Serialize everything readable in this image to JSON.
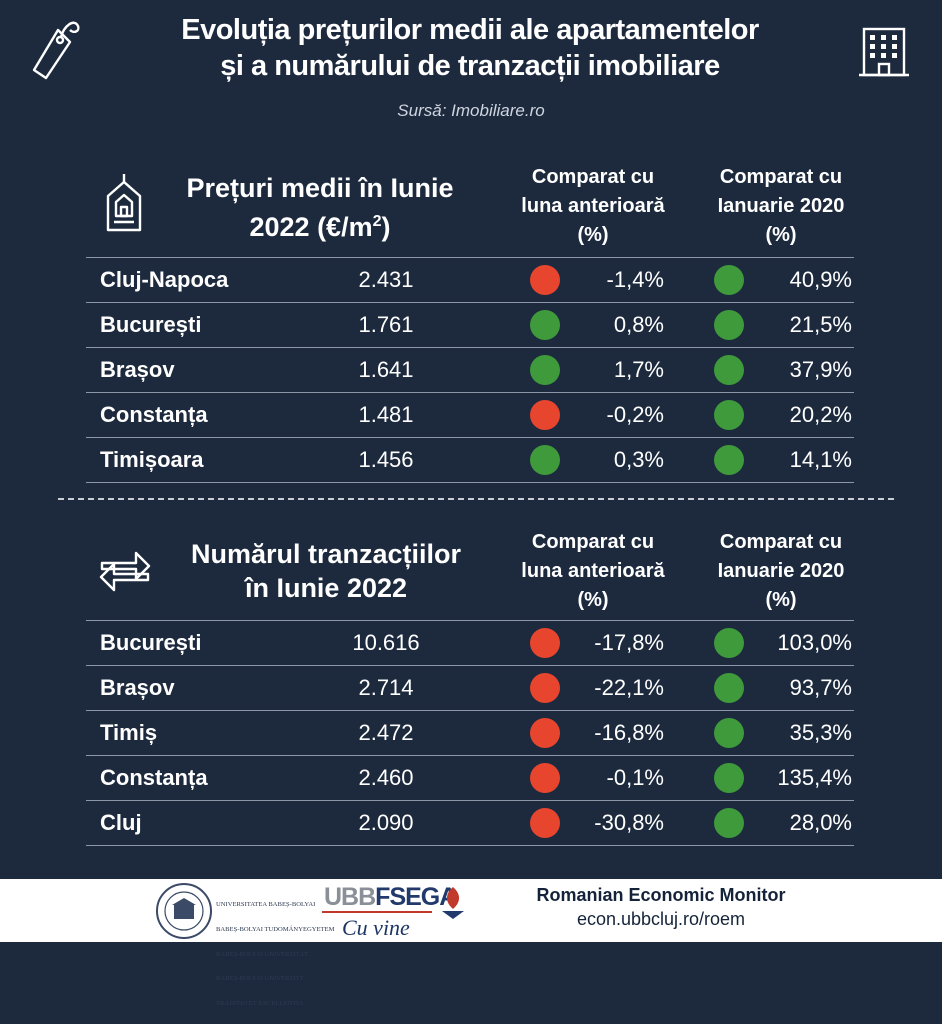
{
  "header": {
    "title_line1": "Evoluția prețurilor medii ale apartamentelor",
    "title_line2": "și a numărului de tranzacții imobiliare",
    "source": "Sursă: Imobiliare.ro"
  },
  "colors": {
    "background": "#1d2a3e",
    "up": "#3e9a3a",
    "down": "#e8452f",
    "footer": "#ffffff"
  },
  "icons": {
    "tag": "price-tag-icon",
    "building": "office-building-icon",
    "house": "house-frame-icon",
    "transfer": "transfer-arrows-icon",
    "university": "university-seal-logo"
  },
  "prices": {
    "title_line1": "Prețuri medii în Iunie",
    "title_line2": "2022 (€/m",
    "title_sup": "2",
    "title_end": ")",
    "col1": [
      "Comparat cu",
      "luna anterioară",
      "(%)"
    ],
    "col2": [
      "Comparat cu",
      "Ianuarie 2020",
      "(%)"
    ],
    "rows": [
      {
        "city": "Cluj-Napoca",
        "value": "2.431",
        "change_month": "-1,4%",
        "month_trend": "down",
        "change_2020": "40,9%",
        "trend_2020": "up"
      },
      {
        "city": "București",
        "value": "1.761",
        "change_month": "0,8%",
        "month_trend": "up",
        "change_2020": "21,5%",
        "trend_2020": "up"
      },
      {
        "city": "Brașov",
        "value": "1.641",
        "change_month": "1,7%",
        "month_trend": "up",
        "change_2020": "37,9%",
        "trend_2020": "up"
      },
      {
        "city": "Constanța",
        "value": "1.481",
        "change_month": "-0,2%",
        "month_trend": "down",
        "change_2020": "20,2%",
        "trend_2020": "up"
      },
      {
        "city": "Timișoara",
        "value": "1.456",
        "change_month": "0,3%",
        "month_trend": "up",
        "change_2020": "14,1%",
        "trend_2020": "up"
      }
    ]
  },
  "transactions": {
    "title_line1": "Numărul tranzacțiilor",
    "title_line2": "în Iunie 2022",
    "col1": [
      "Comparat cu",
      "luna anterioară",
      "(%)"
    ],
    "col2": [
      "Comparat cu",
      "Ianuarie 2020",
      "(%)"
    ],
    "rows": [
      {
        "city": "București",
        "value": "10.616",
        "change_month": "-17,8%",
        "month_trend": "down",
        "change_2020": "103,0%",
        "trend_2020": "up"
      },
      {
        "city": "Brașov",
        "value": "2.714",
        "change_month": "-22,1%",
        "month_trend": "down",
        "change_2020": "93,7%",
        "trend_2020": "up"
      },
      {
        "city": "Timiș",
        "value": "2.472",
        "change_month": "-16,8%",
        "month_trend": "down",
        "change_2020": "35,3%",
        "trend_2020": "up"
      },
      {
        "city": "Constanța",
        "value": "2.460",
        "change_month": "-0,1%",
        "month_trend": "down",
        "change_2020": "135,4%",
        "trend_2020": "up"
      },
      {
        "city": "Cluj",
        "value": "2.090",
        "change_month": "-30,8%",
        "month_trend": "down",
        "change_2020": "28,0%",
        "trend_2020": "up"
      }
    ]
  },
  "footer": {
    "uni_text": [
      "UNIVERSITATEA BABEȘ-BOLYAI",
      "BABEȘ-BOLYAI TUDOMÁNYEGYETEM",
      "BABEȘ-BOLYAI UNIVERSITÄT",
      "BABEȘ-BOLYAI UNIVERSITY",
      "TRADITIO ET EXCELLENTIA"
    ],
    "ubb": "UBB",
    "fsega": "FSEGA",
    "script": "Cu vine",
    "roem": "Romanian Economic Monitor",
    "url": "econ.ubbcluj.ro/roem"
  }
}
